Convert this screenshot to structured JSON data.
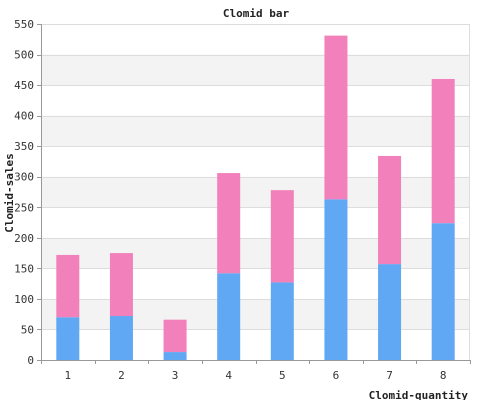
{
  "chart_data": {
    "type": "bar",
    "stacked": true,
    "title": "Clomid bar",
    "xlabel": "Clomid-quantity",
    "ylabel": "Clomid-sales",
    "categories": [
      "1",
      "2",
      "3",
      "4",
      "5",
      "6",
      "7",
      "8"
    ],
    "series": [
      {
        "values": [
          70,
          72,
          13,
          142,
          127,
          263,
          157,
          224
        ],
        "color": "#60a8f4"
      },
      {
        "values": [
          102,
          103,
          53,
          164,
          151,
          268,
          177,
          236
        ],
        "color": "#f280bb"
      }
    ],
    "ylim": [
      0,
      550
    ],
    "yticks": [
      0,
      50,
      100,
      150,
      200,
      250,
      300,
      350,
      400,
      450,
      500,
      550
    ],
    "grid": true,
    "band_colors": [
      "#ffffff",
      "#f3f3f3"
    ]
  }
}
